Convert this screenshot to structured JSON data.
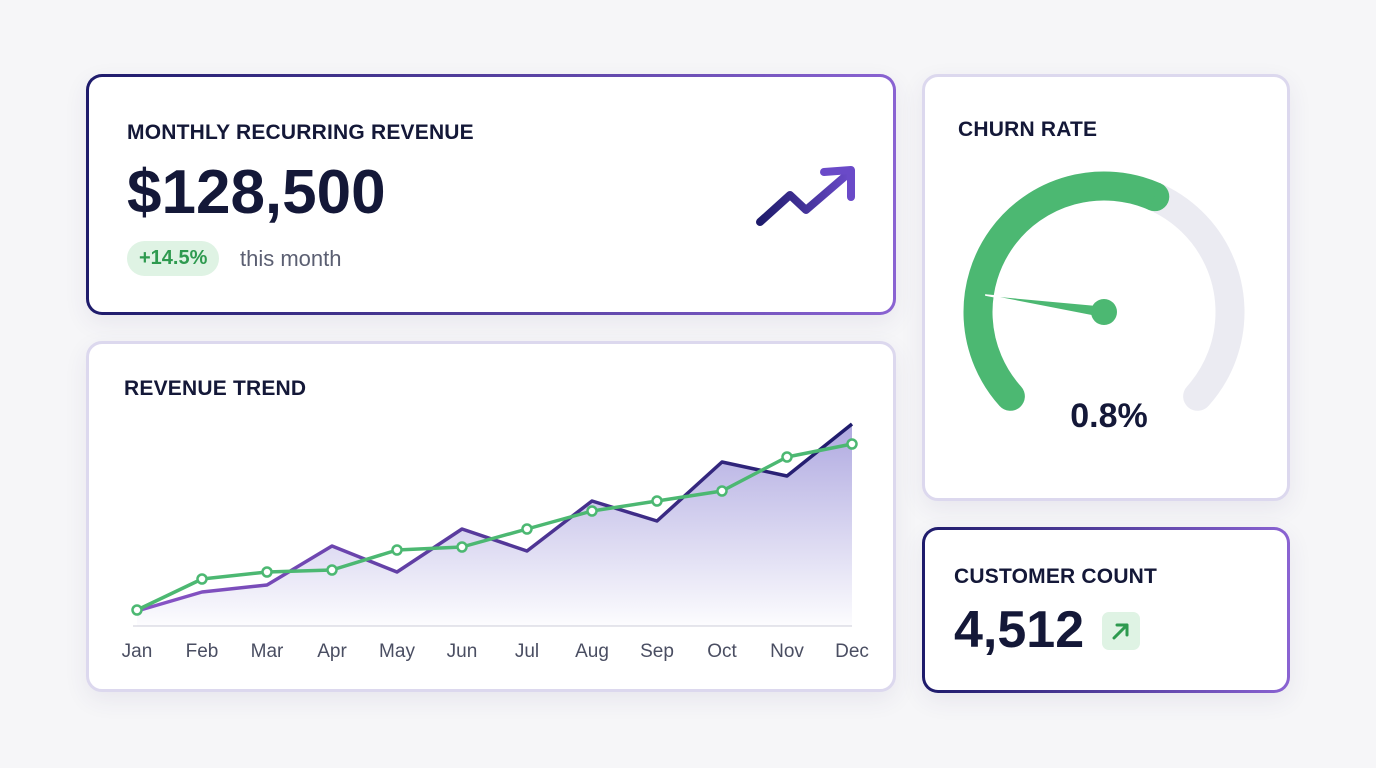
{
  "mrr": {
    "title": "MONTHLY RECURRING REVENUE",
    "value": "$128,500",
    "change": "+14.5%",
    "change_suffix": "this month",
    "icon": "trend-up-arrow-icon"
  },
  "trend": {
    "title": "REVENUE TREND"
  },
  "churn": {
    "title": "CHURN RATE",
    "value": "0.8%",
    "gauge_fill": 0.59,
    "needle": 0.19
  },
  "customers": {
    "title": "CUSTOMER COUNT",
    "value": "4,512",
    "icon": "arrow-up-right-icon"
  },
  "colors": {
    "navy": "#1e1b6b",
    "purple": "#8a63d2",
    "green": "#4cb872",
    "track": "#ebebf2"
  },
  "chart_data": {
    "type": "line",
    "categories": [
      "Jan",
      "Feb",
      "Mar",
      "Apr",
      "May",
      "Jun",
      "Jul",
      "Aug",
      "Sep",
      "Oct",
      "Nov",
      "Dec"
    ],
    "series": [
      {
        "values": [
          15,
          34,
          41,
          80,
          54,
          97,
          75,
          125,
          105,
          164,
          150,
          202
        ],
        "color": "#3b2a9a",
        "area": true
      },
      {
        "values": [
          16,
          47,
          54,
          56,
          76,
          79,
          97,
          115,
          125,
          135,
          169,
          182
        ],
        "color": "#4cb872",
        "markers": true
      }
    ],
    "ylim": [
      0,
      210
    ],
    "grid": false,
    "legend": "none"
  }
}
